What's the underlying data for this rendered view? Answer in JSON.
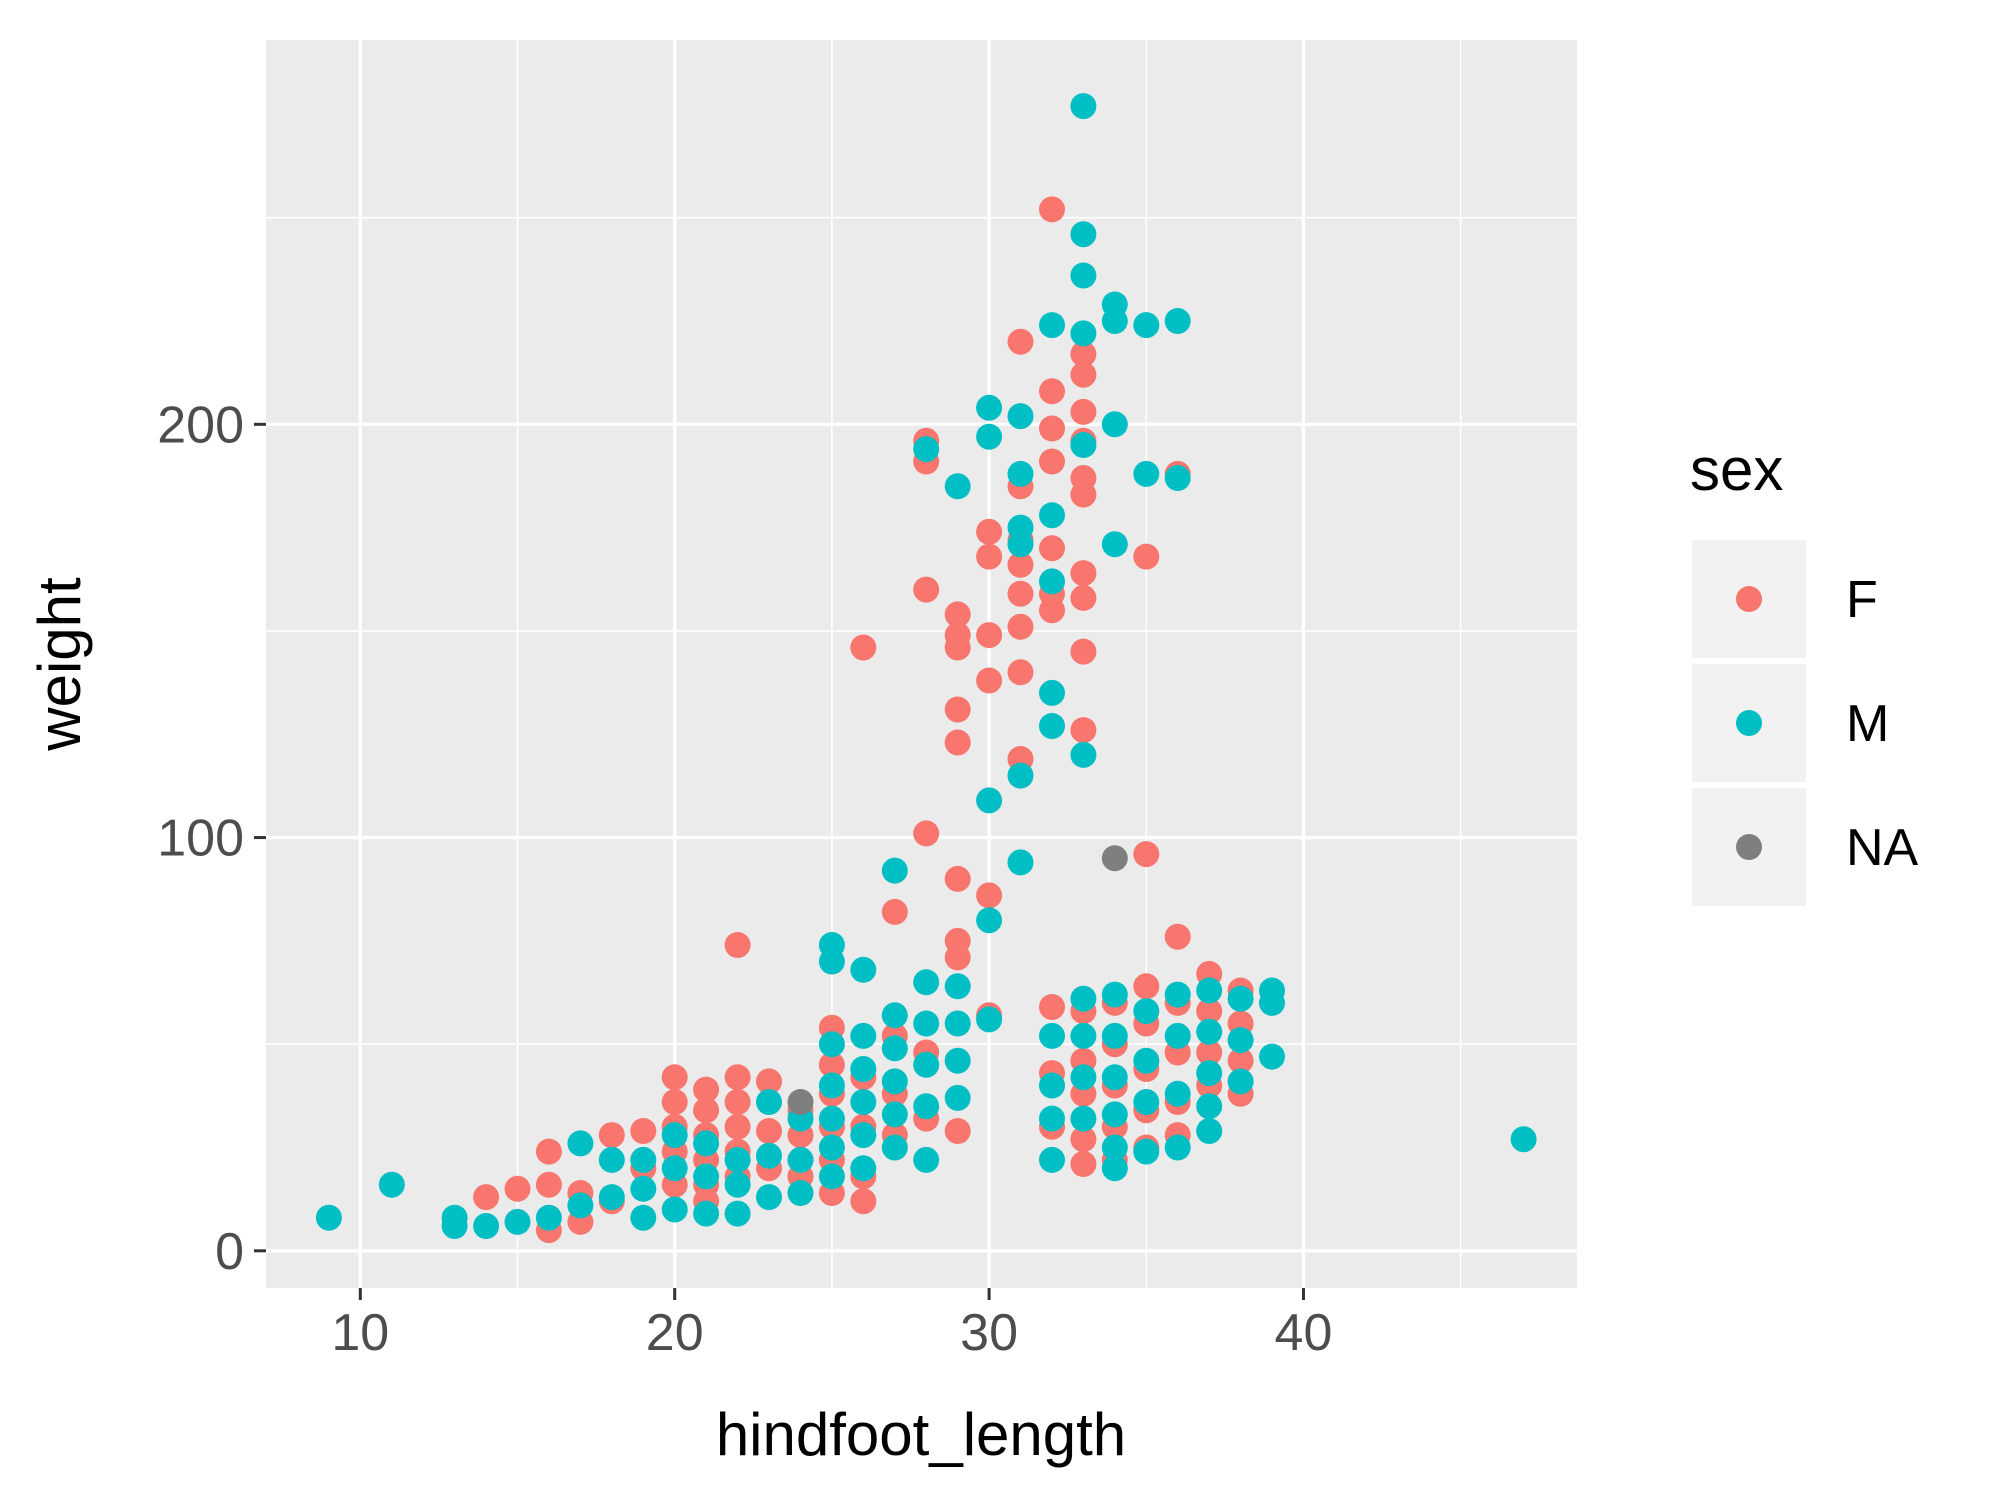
{
  "chart_data": {
    "type": "scatter",
    "title": "",
    "xlabel": "hindfoot_length",
    "ylabel": "weight",
    "xlim": [
      7,
      48.7
    ],
    "ylim": [
      -9,
      293
    ],
    "x_ticks": [
      10,
      20,
      30,
      40
    ],
    "x_minor_ticks": [
      15,
      25,
      35,
      45
    ],
    "y_ticks": [
      0,
      100,
      200
    ],
    "y_minor_ticks": [
      50,
      150,
      250
    ],
    "x_tick_labels": [
      "10",
      "20",
      "30",
      "40"
    ],
    "y_tick_labels": [
      "0",
      "100",
      "200"
    ],
    "grid": true,
    "panel_background": "#ebebeb",
    "grid_color": "#ffffff",
    "legend": {
      "title": "sex",
      "position": "right",
      "entries": [
        "F",
        "M",
        "NA"
      ]
    },
    "series": [
      {
        "name": "F",
        "color": "#F8766D",
        "points": [
          [
            14,
            13
          ],
          [
            15,
            15
          ],
          [
            16,
            16
          ],
          [
            16,
            5
          ],
          [
            16,
            24
          ],
          [
            17,
            7
          ],
          [
            17,
            14
          ],
          [
            18,
            28
          ],
          [
            18,
            12
          ],
          [
            19,
            29
          ],
          [
            19,
            20
          ],
          [
            20,
            42
          ],
          [
            20,
            36
          ],
          [
            20,
            30
          ],
          [
            20,
            24
          ],
          [
            20,
            16
          ],
          [
            21,
            39
          ],
          [
            21,
            34
          ],
          [
            21,
            28
          ],
          [
            21,
            22
          ],
          [
            21,
            16
          ],
          [
            21,
            12
          ],
          [
            22,
            74
          ],
          [
            22,
            42
          ],
          [
            22,
            36
          ],
          [
            22,
            30
          ],
          [
            22,
            24
          ],
          [
            22,
            18
          ],
          [
            23,
            41
          ],
          [
            23,
            29
          ],
          [
            23,
            20
          ],
          [
            24,
            34
          ],
          [
            24,
            28
          ],
          [
            24,
            22
          ],
          [
            24,
            18
          ],
          [
            25,
            54
          ],
          [
            25,
            45
          ],
          [
            25,
            38
          ],
          [
            25,
            30
          ],
          [
            25,
            22
          ],
          [
            25,
            14
          ],
          [
            26,
            146
          ],
          [
            26,
            42
          ],
          [
            26,
            30
          ],
          [
            26,
            18
          ],
          [
            26,
            12
          ],
          [
            27,
            82
          ],
          [
            27,
            52
          ],
          [
            27,
            38
          ],
          [
            27,
            28
          ],
          [
            28,
            196
          ],
          [
            28,
            191
          ],
          [
            28,
            160
          ],
          [
            28,
            101
          ],
          [
            28,
            48
          ],
          [
            28,
            32
          ],
          [
            29,
            154
          ],
          [
            29,
            149
          ],
          [
            29,
            146
          ],
          [
            29,
            131
          ],
          [
            29,
            123
          ],
          [
            29,
            90
          ],
          [
            29,
            75
          ],
          [
            29,
            71
          ],
          [
            29,
            29
          ],
          [
            30,
            174
          ],
          [
            30,
            168
          ],
          [
            30,
            149
          ],
          [
            30,
            138
          ],
          [
            30,
            86
          ],
          [
            30,
            57
          ],
          [
            31,
            220
          ],
          [
            31,
            185
          ],
          [
            31,
            172
          ],
          [
            31,
            166
          ],
          [
            31,
            159
          ],
          [
            31,
            151
          ],
          [
            31,
            140
          ],
          [
            31,
            119
          ],
          [
            32,
            252
          ],
          [
            32,
            208
          ],
          [
            32,
            199
          ],
          [
            32,
            191
          ],
          [
            32,
            170
          ],
          [
            32,
            159
          ],
          [
            32,
            155
          ],
          [
            32,
            59
          ],
          [
            32,
            43
          ],
          [
            32,
            30
          ],
          [
            33,
            217
          ],
          [
            33,
            212
          ],
          [
            33,
            203
          ],
          [
            33,
            196
          ],
          [
            33,
            187
          ],
          [
            33,
            183
          ],
          [
            33,
            164
          ],
          [
            33,
            158
          ],
          [
            33,
            145
          ],
          [
            33,
            126
          ],
          [
            33,
            58
          ],
          [
            33,
            46
          ],
          [
            33,
            38
          ],
          [
            33,
            27
          ],
          [
            33,
            21
          ],
          [
            34,
            60
          ],
          [
            34,
            50
          ],
          [
            34,
            40
          ],
          [
            34,
            30
          ],
          [
            34,
            22
          ],
          [
            35,
            168
          ],
          [
            35,
            96
          ],
          [
            35,
            64
          ],
          [
            35,
            55
          ],
          [
            35,
            44
          ],
          [
            35,
            34
          ],
          [
            35,
            25
          ],
          [
            36,
            188
          ],
          [
            36,
            76
          ],
          [
            36,
            60
          ],
          [
            36,
            48
          ],
          [
            36,
            36
          ],
          [
            36,
            28
          ],
          [
            37,
            67
          ],
          [
            37,
            58
          ],
          [
            37,
            48
          ],
          [
            37,
            40
          ],
          [
            38,
            63
          ],
          [
            38,
            55
          ],
          [
            38,
            46
          ],
          [
            38,
            38
          ]
        ]
      },
      {
        "name": "M",
        "color": "#00BFC4",
        "points": [
          [
            9,
            8
          ],
          [
            11,
            16
          ],
          [
            13,
            6
          ],
          [
            13,
            8
          ],
          [
            14,
            6
          ],
          [
            15,
            7
          ],
          [
            16,
            8
          ],
          [
            17,
            26
          ],
          [
            17,
            11
          ],
          [
            18,
            22
          ],
          [
            18,
            13
          ],
          [
            19,
            22
          ],
          [
            19,
            15
          ],
          [
            19,
            8
          ],
          [
            20,
            28
          ],
          [
            20,
            20
          ],
          [
            20,
            10
          ],
          [
            21,
            26
          ],
          [
            21,
            18
          ],
          [
            21,
            9
          ],
          [
            22,
            22
          ],
          [
            22,
            16
          ],
          [
            22,
            9
          ],
          [
            23,
            36
          ],
          [
            23,
            23
          ],
          [
            23,
            13
          ],
          [
            24,
            32
          ],
          [
            24,
            22
          ],
          [
            24,
            14
          ],
          [
            25,
            74
          ],
          [
            25,
            70
          ],
          [
            25,
            50
          ],
          [
            25,
            40
          ],
          [
            25,
            32
          ],
          [
            25,
            25
          ],
          [
            25,
            18
          ],
          [
            26,
            68
          ],
          [
            26,
            52
          ],
          [
            26,
            44
          ],
          [
            26,
            36
          ],
          [
            26,
            28
          ],
          [
            26,
            20
          ],
          [
            27,
            92
          ],
          [
            27,
            57
          ],
          [
            27,
            49
          ],
          [
            27,
            41
          ],
          [
            27,
            33
          ],
          [
            27,
            25
          ],
          [
            28,
            194
          ],
          [
            28,
            65
          ],
          [
            28,
            55
          ],
          [
            28,
            45
          ],
          [
            28,
            35
          ],
          [
            28,
            22
          ],
          [
            29,
            185
          ],
          [
            29,
            64
          ],
          [
            29,
            55
          ],
          [
            29,
            46
          ],
          [
            29,
            37
          ],
          [
            30,
            204
          ],
          [
            30,
            197
          ],
          [
            30,
            109
          ],
          [
            30,
            80
          ],
          [
            30,
            56
          ],
          [
            31,
            202
          ],
          [
            31,
            188
          ],
          [
            31,
            175
          ],
          [
            31,
            171
          ],
          [
            31,
            115
          ],
          [
            31,
            94
          ],
          [
            32,
            224
          ],
          [
            32,
            178
          ],
          [
            32,
            162
          ],
          [
            32,
            135
          ],
          [
            32,
            127
          ],
          [
            32,
            52
          ],
          [
            32,
            40
          ],
          [
            32,
            32
          ],
          [
            32,
            22
          ],
          [
            33,
            277
          ],
          [
            33,
            246
          ],
          [
            33,
            236
          ],
          [
            33,
            222
          ],
          [
            33,
            195
          ],
          [
            33,
            120
          ],
          [
            33,
            61
          ],
          [
            33,
            52
          ],
          [
            33,
            42
          ],
          [
            33,
            32
          ],
          [
            34,
            229
          ],
          [
            34,
            225
          ],
          [
            34,
            200
          ],
          [
            34,
            171
          ],
          [
            34,
            62
          ],
          [
            34,
            52
          ],
          [
            34,
            42
          ],
          [
            34,
            33
          ],
          [
            34,
            25
          ],
          [
            34,
            20
          ],
          [
            35,
            224
          ],
          [
            35,
            188
          ],
          [
            35,
            58
          ],
          [
            35,
            46
          ],
          [
            35,
            36
          ],
          [
            35,
            24
          ],
          [
            36,
            225
          ],
          [
            36,
            187
          ],
          [
            36,
            62
          ],
          [
            36,
            52
          ],
          [
            36,
            38
          ],
          [
            36,
            25
          ],
          [
            37,
            63
          ],
          [
            37,
            53
          ],
          [
            37,
            43
          ],
          [
            37,
            35
          ],
          [
            37,
            29
          ],
          [
            38,
            61
          ],
          [
            38,
            51
          ],
          [
            38,
            41
          ],
          [
            39,
            63
          ],
          [
            39,
            60
          ],
          [
            39,
            47
          ],
          [
            47,
            27
          ]
        ]
      },
      {
        "name": "NA",
        "color": "#7F7F7F",
        "points": [
          [
            24,
            36
          ],
          [
            34,
            95
          ]
        ]
      }
    ]
  }
}
